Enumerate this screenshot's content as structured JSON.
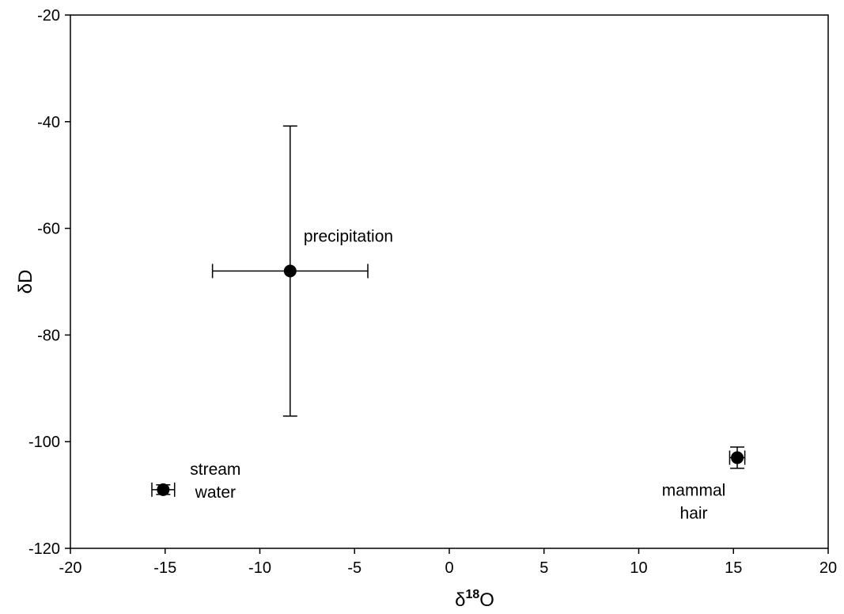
{
  "chart_data": {
    "type": "scatter",
    "title": "",
    "xlabel": {
      "main": "δ",
      "sup": "18",
      "tail": "O"
    },
    "ylabel": "δD",
    "xlim": [
      -20,
      20
    ],
    "ylim": [
      -120,
      -20
    ],
    "xticks": [
      -20,
      -15,
      -10,
      -5,
      0,
      5,
      10,
      15,
      20
    ],
    "yticks": [
      -120,
      -100,
      -80,
      -60,
      -40,
      -20
    ],
    "grid": false,
    "legend": "none",
    "points": [
      {
        "label": "precipitation",
        "x": -8.4,
        "y": -68,
        "x_err": 4.1,
        "y_err": 27.2
      },
      {
        "label_lines": [
          "stream",
          "water"
        ],
        "x": -15.1,
        "y": -109,
        "x_err": 0.6,
        "y_err": 0.9
      },
      {
        "label_lines": [
          "mammal",
          "hair"
        ],
        "x": 15.2,
        "y": -103,
        "x_err": 0.4,
        "y_err": 2.0
      }
    ]
  }
}
